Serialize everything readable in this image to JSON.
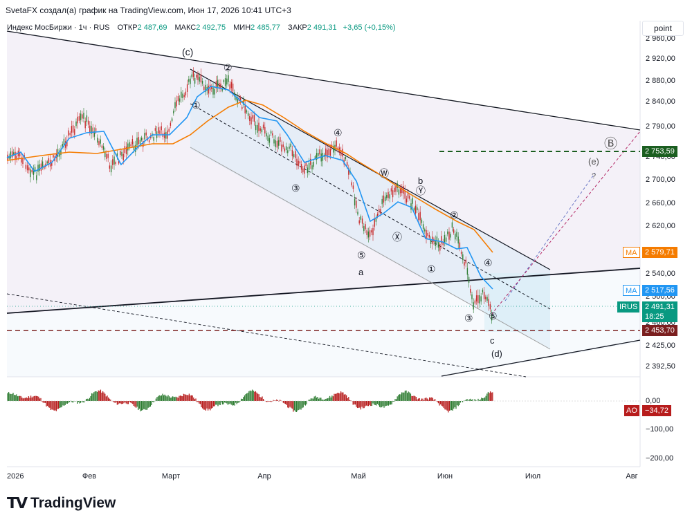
{
  "header": {
    "author_line": "SvetaFX создал(а) график на TradingView.com, Июн 17, 2026 10:41 UTC+3"
  },
  "legend": {
    "symbol": "Индекс МосБиржи · 1ч · RUS",
    "open_label": "ОТКР",
    "open_value": "2 487,69",
    "high_label": "МАКС",
    "high_value": "2 492,75",
    "low_label": "МИН",
    "low_value": "2 485,77",
    "close_label": "ЗАКР",
    "close_value": "2 491,31",
    "change": "+3,65 (+0,15%)"
  },
  "scale_button": "point",
  "price_axis": [
    "2 960,00",
    "2 920,00",
    "2 880,00",
    "2 840,00",
    "2 790,00",
    "2 740,00",
    "2 700,00",
    "2 660,00",
    "2 620,00",
    "2 540,00",
    "2 500,00",
    "2 460,00",
    "2 425,00",
    "2 392,50"
  ],
  "time_axis": [
    "2026",
    "Фев",
    "Март",
    "Апр",
    "Май",
    "Июн",
    "Июл",
    "Авг"
  ],
  "ao_axis": [
    "0,00",
    "−100,00",
    "−200,00"
  ],
  "price_tags": {
    "level_green": {
      "value": "2 753,59",
      "color": "#1b5e20"
    },
    "ma_slow": {
      "label": "MA",
      "value": "2 579,71",
      "color": "#f57c00"
    },
    "ma_fast": {
      "label": "MA",
      "value": "2 517,56",
      "color": "#2196f3"
    },
    "last": {
      "label": "IRUS",
      "value": "2 491,31",
      "timer": "18:25",
      "color": "#089981"
    },
    "level_red": {
      "value": "2 453,70",
      "color": "#7b1f1f"
    },
    "ao": {
      "label": "AO",
      "value": "−34,72",
      "color": "#b71c1c"
    }
  },
  "wave_labels": {
    "c_paren": "(c)",
    "w2": "②",
    "w1": "①",
    "w3": "③",
    "w4": "④",
    "w5": "⑤",
    "wa": "a",
    "wW": "Ⓦ",
    "wX": "Ⓧ",
    "wY": "Ⓨ",
    "wb": "b",
    "w1b": "①",
    "w2b": "②",
    "w3b": "③",
    "w4b": "④",
    "w5b": "⑤",
    "wc": "c",
    "wd": "(d)",
    "we": "(e)",
    "wq": "?",
    "wB": "Ⓑ"
  },
  "logo": {
    "text": "TradingView"
  }
}
